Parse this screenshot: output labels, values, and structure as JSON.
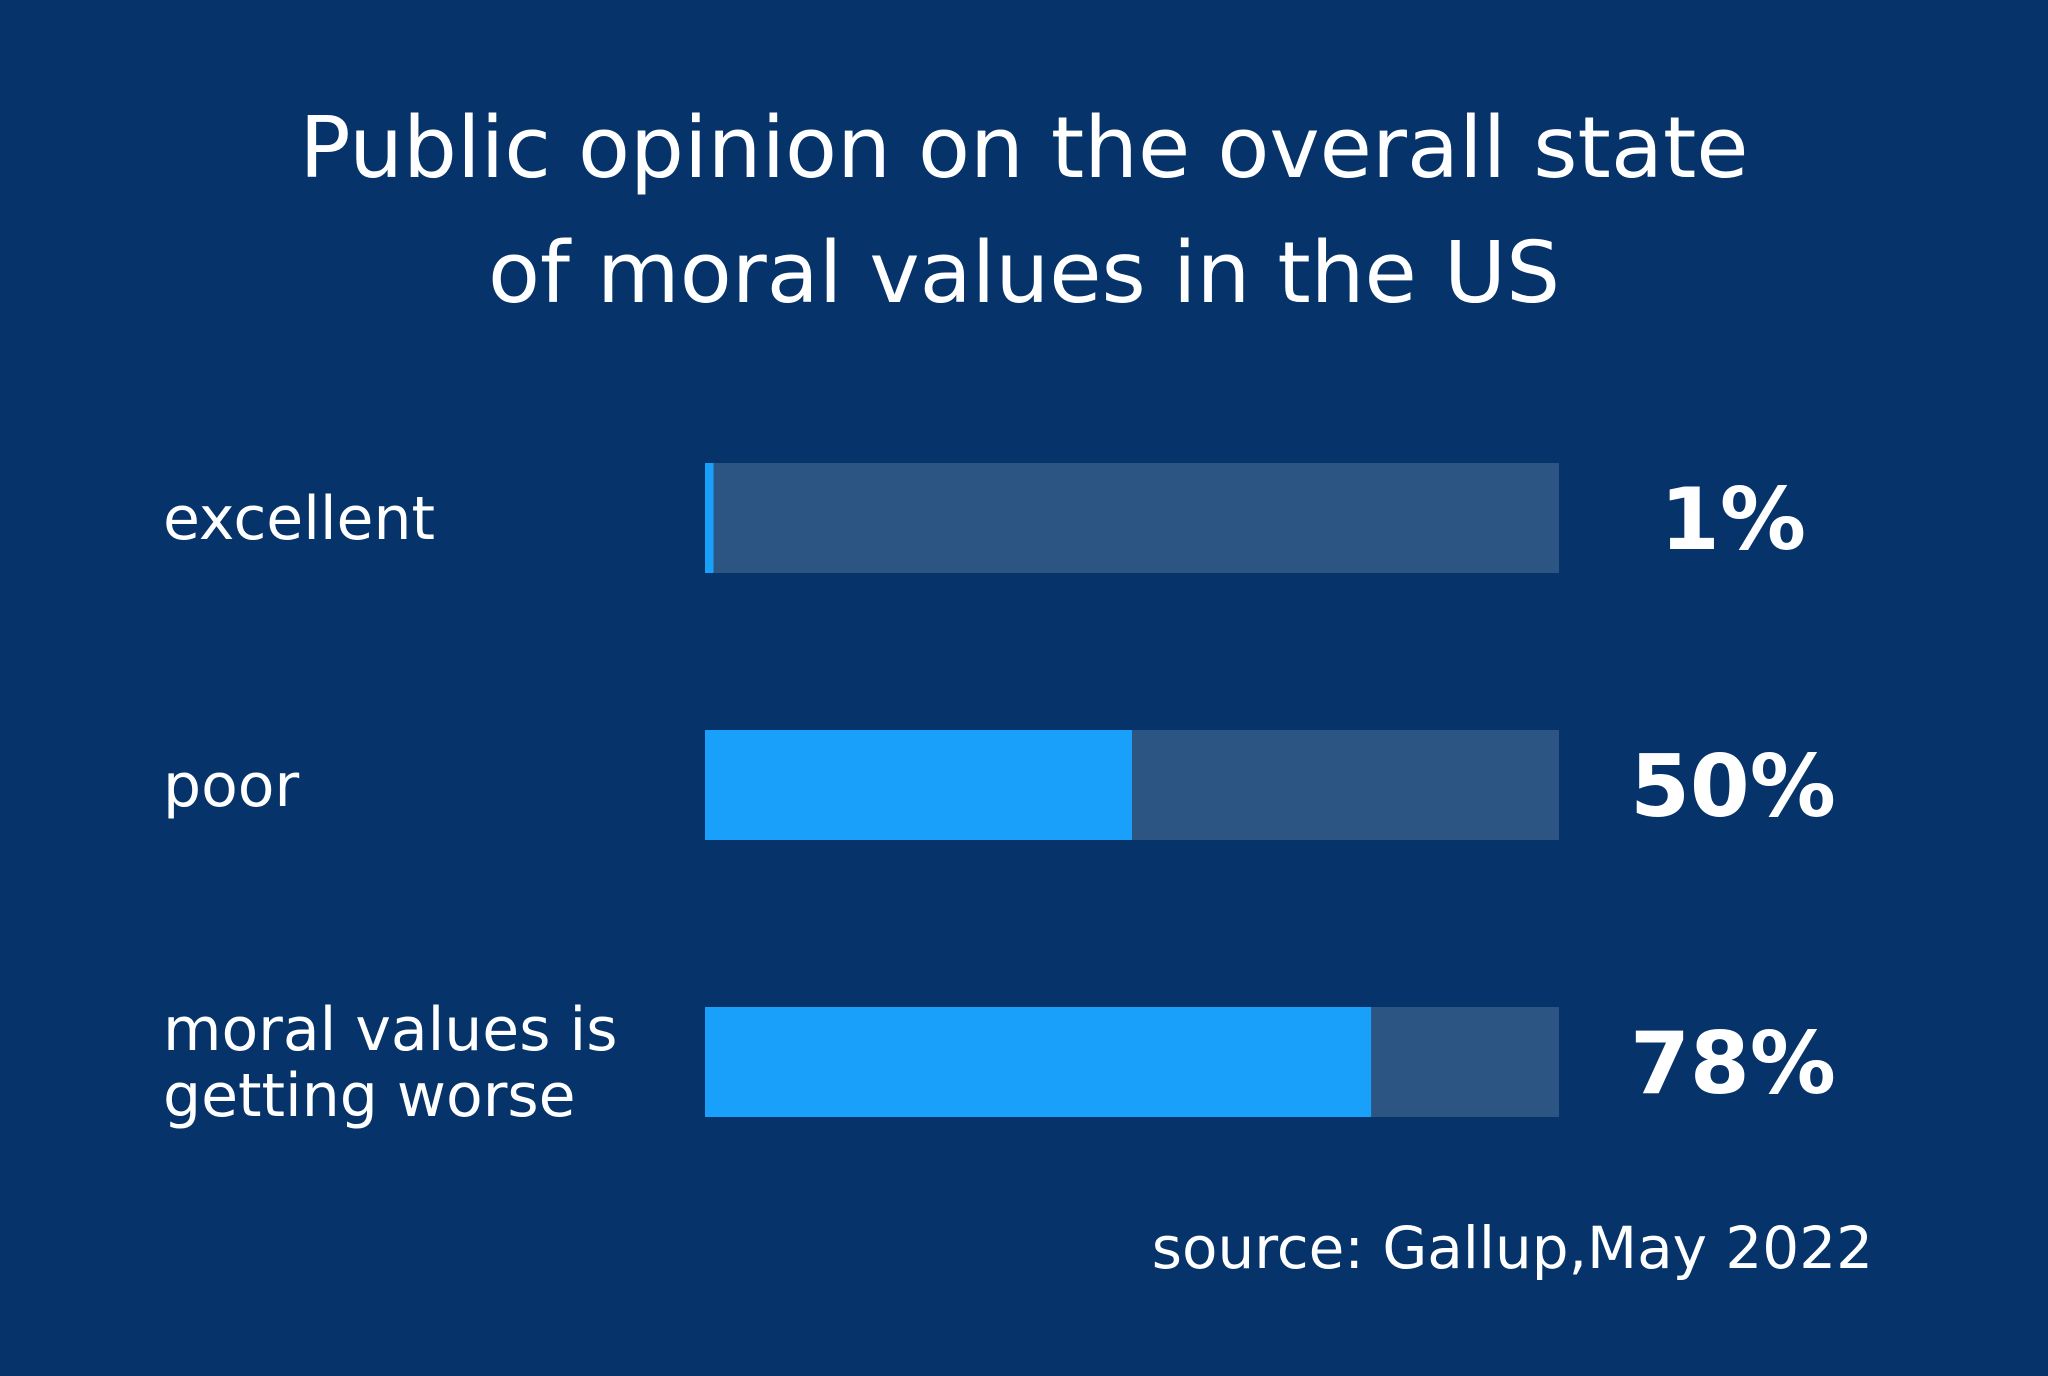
{
  "chart_data": {
    "type": "bar",
    "orientation": "horizontal",
    "title_lines": [
      "Public opinion on the overall state",
      "of moral values in the US"
    ],
    "categories": [
      [
        "excellent"
      ],
      [
        "poor"
      ],
      [
        "moral values is",
        "getting worse"
      ]
    ],
    "values": [
      1,
      50,
      78
    ],
    "value_labels": [
      "1%",
      "50%",
      "78%"
    ],
    "xlim": [
      0,
      100
    ],
    "source": "source:  Gallup,May 2022",
    "grid": false,
    "legend": "none"
  },
  "colors": {
    "background": "#06346a",
    "bar_fill": "#18a0fb",
    "bar_track": "#2c5583",
    "text": "#ffffff"
  }
}
